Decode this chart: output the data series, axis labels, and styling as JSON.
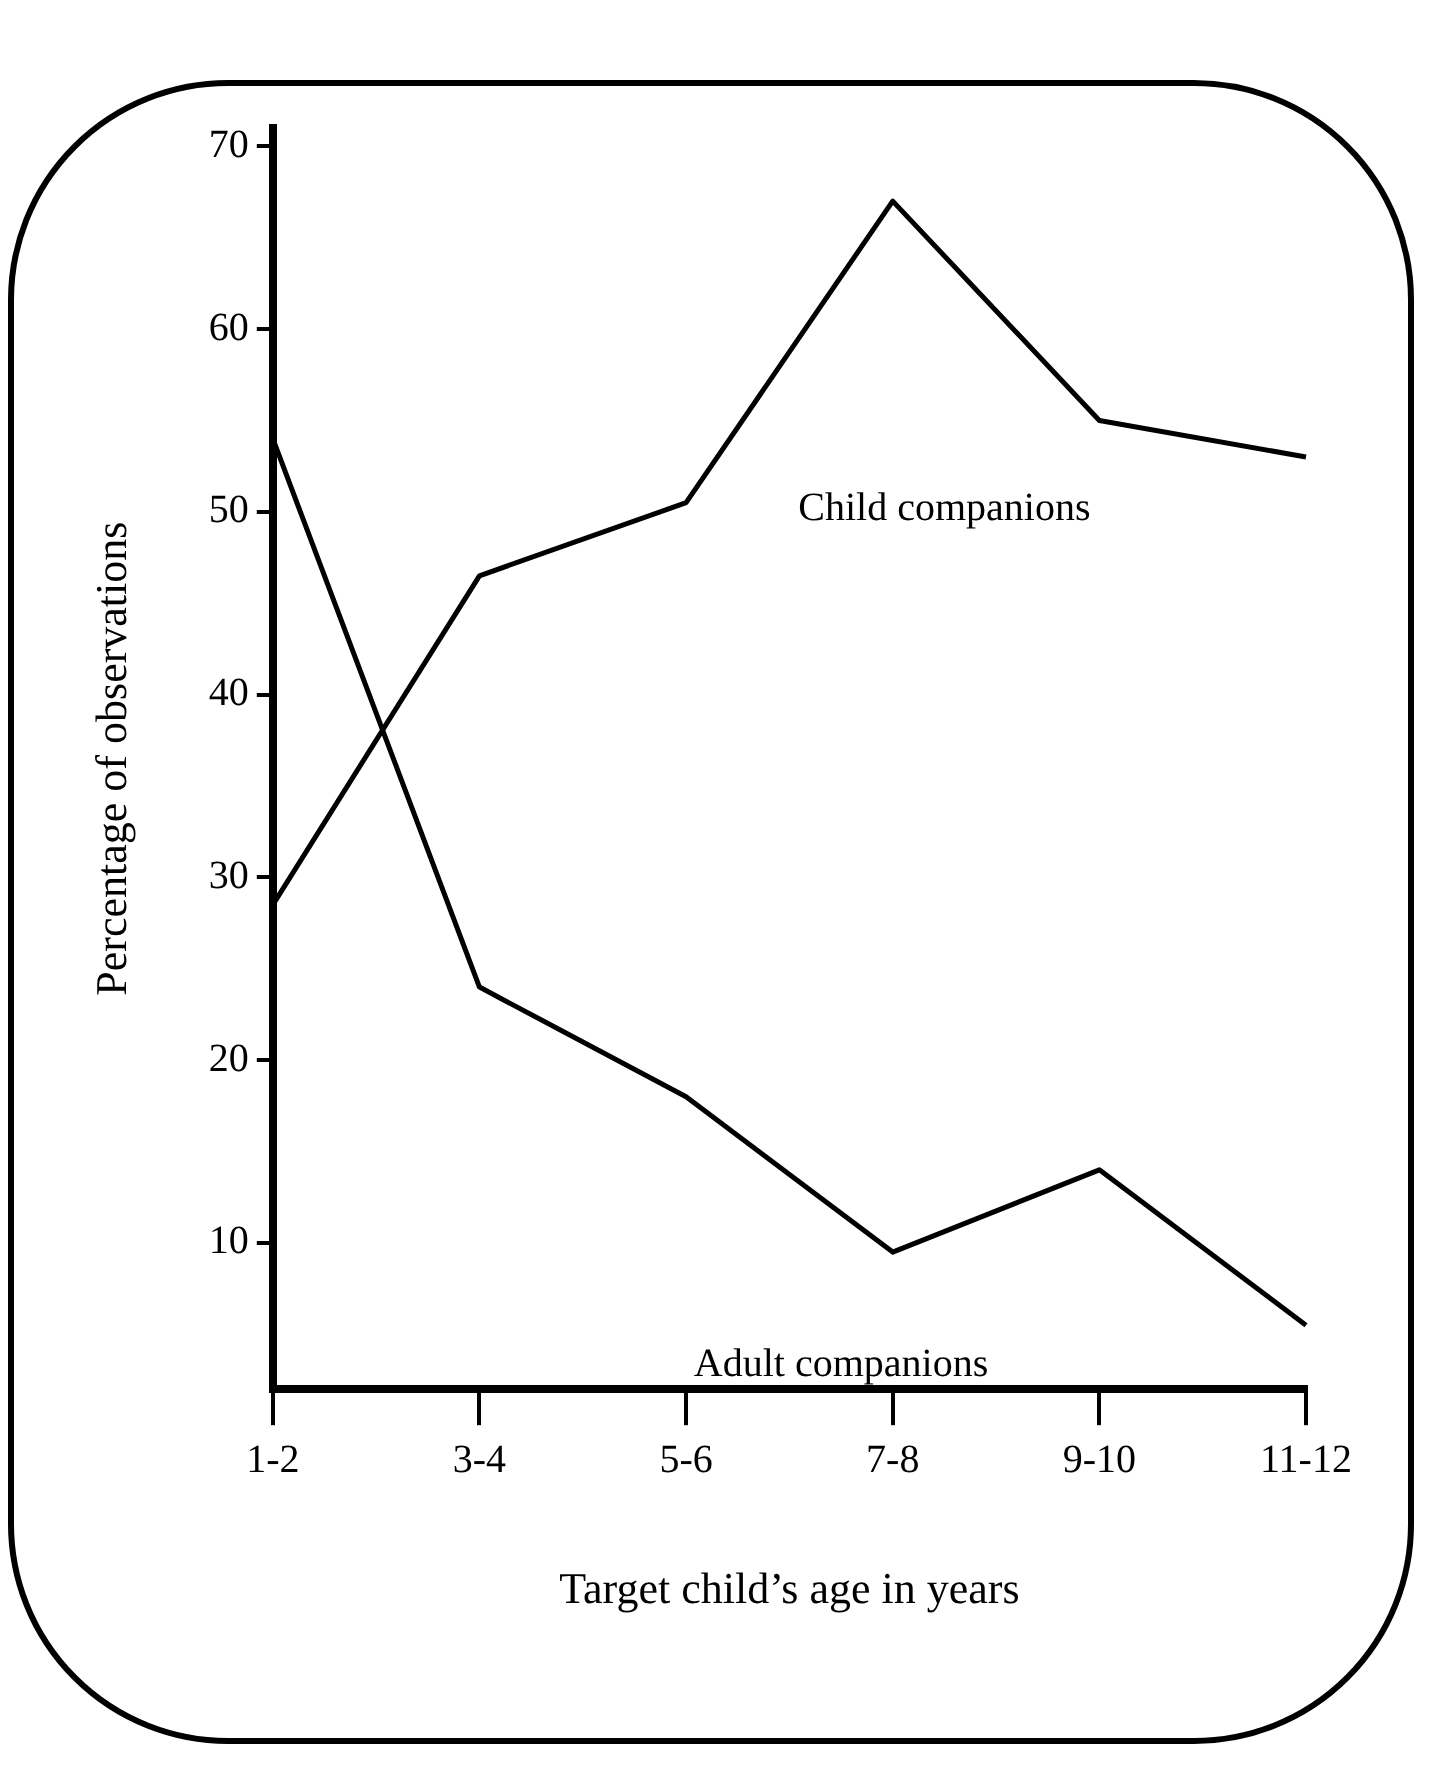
{
  "chart_data": {
    "type": "line",
    "xlabel": "Target child’s age in years",
    "ylabel": "Percentage of observations",
    "categories": [
      "1-2",
      "3-4",
      "5-6",
      "7-8",
      "9-10",
      "11-12"
    ],
    "series": [
      {
        "name": "Child companions",
        "color": "#000000",
        "values": [
          28.5,
          46.5,
          50.5,
          67,
          55,
          53
        ]
      },
      {
        "name": "Adult companions",
        "color": "#000000",
        "values": [
          54,
          24,
          18,
          9.5,
          14,
          5.5
        ]
      }
    ],
    "ylim": [
      2,
      71
    ],
    "yticks": [
      10,
      20,
      30,
      40,
      50,
      60,
      70
    ],
    "grid": false,
    "legend": false,
    "marker": "none",
    "line_style": "solid"
  }
}
